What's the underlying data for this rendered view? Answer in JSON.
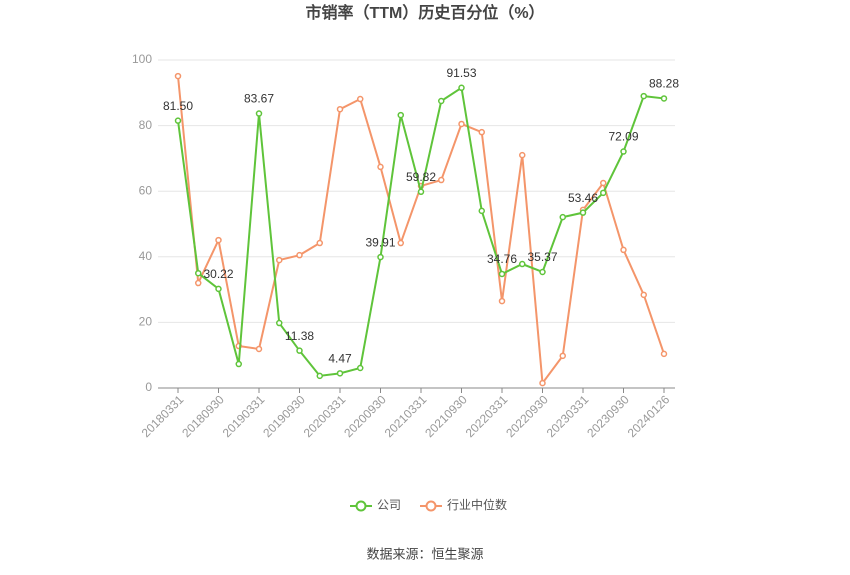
{
  "chart_data": {
    "type": "line",
    "title": "市销率（TTM）历史百分位（%）",
    "source": "数据来源：恒生聚源",
    "categories": [
      "20180331",
      null,
      "20180930",
      null,
      "20190331",
      null,
      "20190930",
      null,
      "20200331",
      null,
      "20200930",
      null,
      "20210331",
      null,
      "20210930",
      null,
      "20220331",
      null,
      "20220930",
      null,
      "20230331",
      null,
      "20230930",
      null,
      "20240126"
    ],
    "series": [
      {
        "name": "公司",
        "color": "#5fc43a",
        "values": [
          81.5,
          35,
          30.22,
          7.3,
          83.67,
          19.8,
          11.38,
          3.7,
          4.47,
          6.1,
          39.91,
          83.2,
          59.82,
          87.5,
          91.53,
          54,
          34.76,
          37.8,
          35.37,
          52.1,
          53.46,
          59.5,
          72.09,
          89,
          88.28
        ],
        "value_labels": [
          "81.50",
          null,
          "30.22",
          null,
          "83.67",
          null,
          "11.38",
          null,
          "4.47",
          null,
          "39.91",
          null,
          "59.82",
          null,
          "91.53",
          null,
          "34.76",
          null,
          "35.37",
          null,
          "53.46",
          null,
          "72.09",
          null,
          "88.28"
        ]
      },
      {
        "name": "行业中位数",
        "color": "#f4956a",
        "values": [
          95.1,
          32,
          45.1,
          12.8,
          11.9,
          39,
          40.5,
          44.2,
          85,
          88.1,
          67.4,
          44.2,
          61.6,
          63.4,
          80.5,
          78,
          26.5,
          71,
          1.5,
          9.8,
          54.3,
          62.5,
          42.1,
          28.4,
          10.4
        ]
      }
    ],
    "ylim": [
      0,
      100
    ],
    "yticks": [
      0,
      20,
      40,
      60,
      80,
      100
    ],
    "grid": true,
    "legend": "bottom"
  }
}
